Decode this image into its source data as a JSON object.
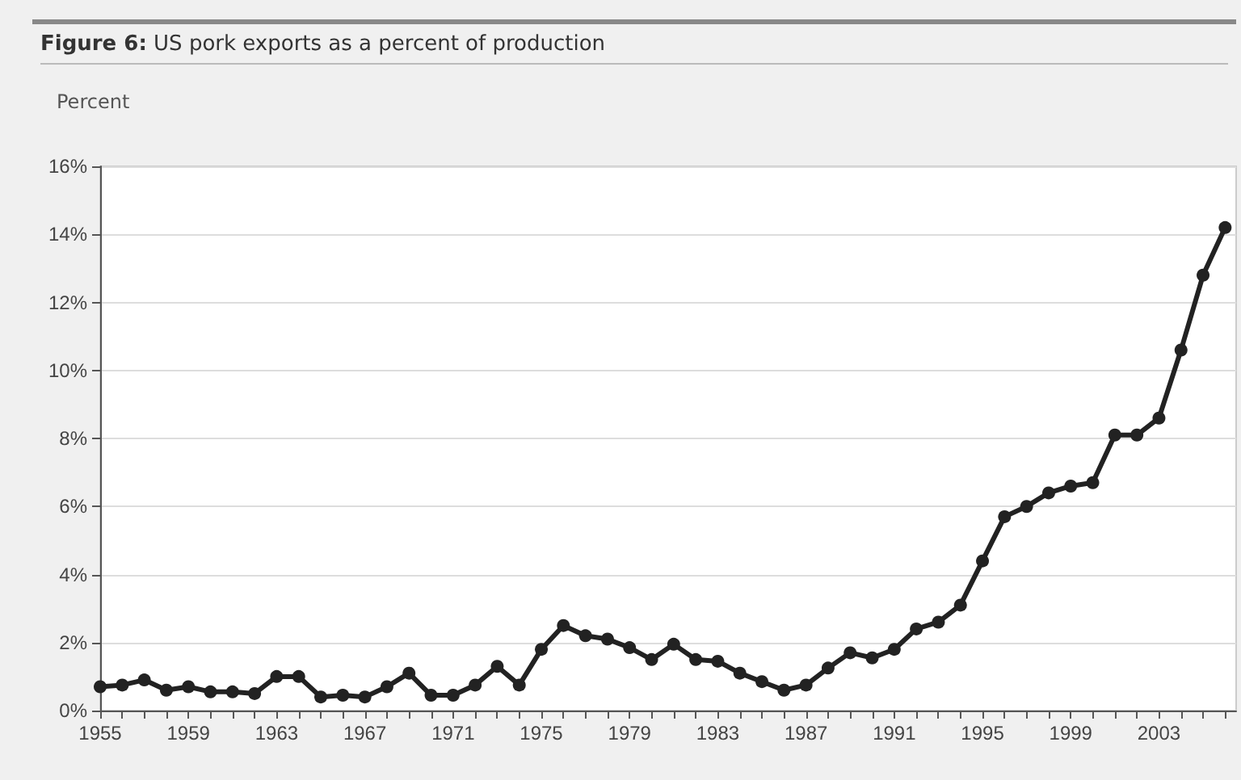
{
  "chart_data": {
    "type": "line",
    "title": "Figure 6: US pork exports as a percent of production",
    "ylabel": "Percent",
    "x": [
      1955,
      1956,
      1957,
      1958,
      1959,
      1960,
      1961,
      1962,
      1963,
      1964,
      1965,
      1966,
      1967,
      1968,
      1969,
      1970,
      1971,
      1972,
      1973,
      1974,
      1975,
      1976,
      1977,
      1978,
      1979,
      1980,
      1981,
      1982,
      1983,
      1984,
      1985,
      1986,
      1987,
      1988,
      1989,
      1990,
      1991,
      1992,
      1993,
      1994,
      1995,
      1996,
      1997,
      1998,
      1999,
      2000,
      2001,
      2002,
      2003,
      2004,
      2005,
      2006
    ],
    "series": [
      {
        "color": "#222222",
        "values": [
          0.7,
          0.75,
          0.9,
          0.6,
          0.7,
          0.55,
          0.55,
          0.5,
          1.0,
          1.0,
          0.4,
          0.45,
          0.4,
          0.7,
          1.1,
          0.45,
          0.45,
          0.75,
          1.3,
          0.75,
          1.8,
          2.5,
          2.2,
          2.1,
          1.85,
          1.5,
          1.95,
          1.5,
          1.45,
          1.1,
          0.85,
          0.6,
          0.75,
          1.25,
          1.7,
          1.55,
          1.8,
          2.4,
          2.6,
          3.1,
          4.4,
          5.7,
          6.0,
          6.4,
          6.6,
          6.7,
          8.1,
          8.1,
          8.6,
          10.6,
          12.8,
          14.2
        ]
      }
    ],
    "xlim": [
      1955,
      2006.5
    ],
    "xticks": [
      1955,
      {
        "value": 1956,
        "label": null
      },
      {
        "value": 1957,
        "label": null
      },
      {
        "value": 1958,
        "label": null
      },
      1959,
      {
        "value": 1960,
        "label": null
      },
      {
        "value": 1961,
        "label": null
      },
      {
        "value": 1962,
        "label": null
      },
      1963,
      {
        "value": 1964,
        "label": null
      },
      {
        "value": 1965,
        "label": null
      },
      {
        "value": 1966,
        "label": null
      },
      1967,
      {
        "value": 1968,
        "label": null
      },
      {
        "value": 1969,
        "label": null
      },
      {
        "value": 1970,
        "label": null
      },
      1971,
      {
        "value": 1972,
        "label": null
      },
      {
        "value": 1973,
        "label": null
      },
      {
        "value": 1974,
        "label": null
      },
      1975,
      {
        "value": 1976,
        "label": null
      },
      {
        "value": 1977,
        "label": null
      },
      {
        "value": 1978,
        "label": null
      },
      1979,
      {
        "value": 1980,
        "label": null
      },
      {
        "value": 1981,
        "label": null
      },
      {
        "value": 1982,
        "label": null
      },
      1983,
      {
        "value": 1984,
        "label": null
      },
      {
        "value": 1985,
        "label": null
      },
      {
        "value": 1986,
        "label": null
      },
      1987,
      {
        "value": 1988,
        "label": null
      },
      {
        "value": 1989,
        "label": null
      },
      {
        "value": 1990,
        "label": null
      },
      1991,
      {
        "value": 1992,
        "label": null
      },
      {
        "value": 1993,
        "label": null
      },
      {
        "value": 1994,
        "label": null
      },
      1995,
      {
        "value": 1996,
        "label": null
      },
      {
        "value": 1997,
        "label": null
      },
      {
        "value": 1998,
        "label": null
      },
      1999,
      {
        "value": 2000,
        "label": null
      },
      {
        "value": 2001,
        "label": null
      },
      {
        "value": 2002,
        "label": null
      },
      2003,
      {
        "value": 2004,
        "label": null
      },
      {
        "value": 2005,
        "label": null
      },
      {
        "value": 2006,
        "label": null
      }
    ],
    "ylim": [
      0,
      16
    ],
    "yticks": [
      {
        "value": 0,
        "label": "0%"
      },
      {
        "value": 2,
        "label": "2%"
      },
      {
        "value": 4,
        "label": "4%"
      },
      {
        "value": 6,
        "label": "6%"
      },
      {
        "value": 8,
        "label": "8%"
      },
      {
        "value": 10,
        "label": "10%"
      },
      {
        "value": 12,
        "label": "12%"
      },
      {
        "value": 14,
        "label": "14%"
      },
      {
        "value": 16,
        "label": "16%"
      }
    ],
    "grid": "y",
    "marker": "circle",
    "line_style": "solid"
  }
}
